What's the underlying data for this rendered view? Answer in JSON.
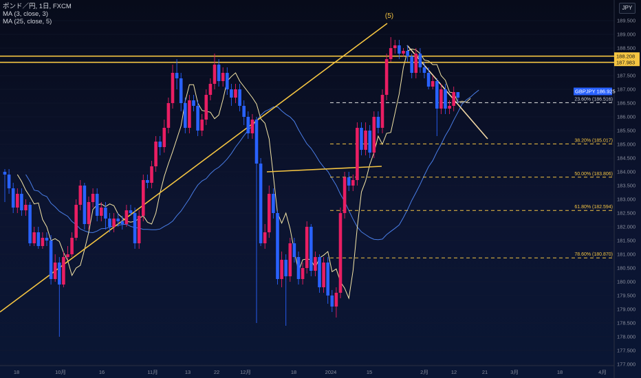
{
  "legend": {
    "symbol_line": "ポンド／円, 1日, FXCM",
    "ma_fast": "MA (3, close, 3)",
    "ma_slow": "MA (25, close, 5)"
  },
  "currency_button": "JPY",
  "colors": {
    "up": "#e91e63",
    "down": "#2962ff",
    "ma_fast": "#f6e7a8",
    "ma_slow": "#4a7ee8",
    "trendline": "#f5c542",
    "fib": "#f5c542",
    "resistance_label_bg": "#f5c542",
    "price_label_bg": "#2962ff"
  },
  "chart_data": {
    "type": "candlestick",
    "symbol": "ポンド／円",
    "timeframe": "1日",
    "y_axis": {
      "ylim": [
        177.0,
        190.0
      ],
      "ticks": [
        "177.000",
        "177.500",
        "178.000",
        "178.500",
        "179.000",
        "179.500",
        "180.000",
        "180.500",
        "181.000",
        "181.500",
        "182.000",
        "182.500",
        "183.000",
        "183.500",
        "184.000",
        "184.500",
        "185.000",
        "185.500",
        "186.000",
        "186.500",
        "187.000",
        "187.500",
        "188.000",
        "188.500",
        "189.000",
        "189.500"
      ]
    },
    "x_axis": {
      "labels": [
        "18",
        "10月",
        "16",
        "11月",
        "13",
        "22",
        "12月",
        "18",
        "2024",
        "15",
        "2月",
        "12",
        "21",
        "3月",
        "18",
        "4月"
      ]
    },
    "candles": [
      [
        184.0,
        183.9,
        184.1,
        182.9
      ],
      [
        183.9,
        183.4,
        184.1,
        183.2
      ],
      [
        183.4,
        182.7,
        183.6,
        182.5
      ],
      [
        182.7,
        183.2,
        183.4,
        182.5
      ],
      [
        183.2,
        182.6,
        183.4,
        182.4
      ],
      [
        182.6,
        182.8,
        183.0,
        182.4
      ],
      [
        182.8,
        181.4,
        182.9,
        181.3
      ],
      [
        181.4,
        181.8,
        182.0,
        181.3
      ],
      [
        181.8,
        181.3,
        182.0,
        181.2
      ],
      [
        181.3,
        181.6,
        181.8,
        181.2
      ],
      [
        181.6,
        181.5,
        181.8,
        181.3
      ],
      [
        181.5,
        180.1,
        181.7,
        179.9
      ],
      [
        180.1,
        180.7,
        181.0,
        180.0
      ],
      [
        180.7,
        179.9,
        180.9,
        178.0
      ],
      [
        179.9,
        180.9,
        181.1,
        179.8
      ],
      [
        180.9,
        181.0,
        181.3,
        180.8
      ],
      [
        181.0,
        181.6,
        181.8,
        180.9
      ],
      [
        181.6,
        182.8,
        183.0,
        181.5
      ],
      [
        182.8,
        183.5,
        183.7,
        182.6
      ],
      [
        183.5,
        182.1,
        183.6,
        181.9
      ],
      [
        182.1,
        182.9,
        183.1,
        181.9
      ],
      [
        182.9,
        183.2,
        183.4,
        182.7
      ],
      [
        183.2,
        182.4,
        183.4,
        182.2
      ],
      [
        182.4,
        182.7,
        182.9,
        182.2
      ],
      [
        182.7,
        182.3,
        182.9,
        181.9
      ],
      [
        182.3,
        182.0,
        182.5,
        181.8
      ],
      [
        182.0,
        182.3,
        182.5,
        181.8
      ],
      [
        182.3,
        182.2,
        182.5,
        182.0
      ],
      [
        182.2,
        182.1,
        182.4,
        181.9
      ],
      [
        182.1,
        182.6,
        182.8,
        182.0
      ],
      [
        182.6,
        182.5,
        182.8,
        182.4
      ],
      [
        182.5,
        181.4,
        182.7,
        181.2
      ],
      [
        181.4,
        182.4,
        182.6,
        181.2
      ],
      [
        182.4,
        183.7,
        183.9,
        182.2
      ],
      [
        183.7,
        183.6,
        183.9,
        183.4
      ],
      [
        183.6,
        184.2,
        184.4,
        183.4
      ],
      [
        184.2,
        185.1,
        185.3,
        184.0
      ],
      [
        185.1,
        184.9,
        185.3,
        184.6
      ],
      [
        184.9,
        185.6,
        185.9,
        184.7
      ],
      [
        185.6,
        186.5,
        186.7,
        185.4
      ],
      [
        186.5,
        187.6,
        187.9,
        186.3
      ],
      [
        187.6,
        187.4,
        188.1,
        187.0
      ],
      [
        187.4,
        186.5,
        187.6,
        186.2
      ],
      [
        186.5,
        185.6,
        186.7,
        185.4
      ],
      [
        185.6,
        186.6,
        186.8,
        185.4
      ],
      [
        186.6,
        186.4,
        186.8,
        186.2
      ],
      [
        186.4,
        185.5,
        186.6,
        185.3
      ],
      [
        185.5,
        185.9,
        186.1,
        185.3
      ],
      [
        185.9,
        186.8,
        187.0,
        185.7
      ],
      [
        186.8,
        187.2,
        187.4,
        186.6
      ],
      [
        187.2,
        187.9,
        188.3,
        187.0
      ],
      [
        187.9,
        187.3,
        188.1,
        187.1
      ],
      [
        187.3,
        187.6,
        187.8,
        187.1
      ],
      [
        187.6,
        187.0,
        187.8,
        186.8
      ],
      [
        187.0,
        186.7,
        187.2,
        186.4
      ],
      [
        186.7,
        187.0,
        187.2,
        186.5
      ],
      [
        187.0,
        186.4,
        187.2,
        186.2
      ],
      [
        186.4,
        186.0,
        186.6,
        185.7
      ],
      [
        186.0,
        185.4,
        186.2,
        185.2
      ],
      [
        185.4,
        185.9,
        186.1,
        185.2
      ],
      [
        185.9,
        184.3,
        186.0,
        178.5
      ],
      [
        184.3,
        181.4,
        184.5,
        181.3
      ],
      [
        181.4,
        181.8,
        182.1,
        181.2
      ],
      [
        181.8,
        183.2,
        183.5,
        181.6
      ],
      [
        183.2,
        182.5,
        183.4,
        182.3
      ],
      [
        182.5,
        180.1,
        182.6,
        179.9
      ],
      [
        180.1,
        180.8,
        181.1,
        179.8
      ],
      [
        180.8,
        180.2,
        181.0,
        178.4
      ],
      [
        180.2,
        181.4,
        181.6,
        180.0
      ],
      [
        181.4,
        180.9,
        181.6,
        180.7
      ],
      [
        180.9,
        180.1,
        181.1,
        179.9
      ],
      [
        180.1,
        180.5,
        180.7,
        179.9
      ],
      [
        180.5,
        182.0,
        182.2,
        180.3
      ],
      [
        182.0,
        180.4,
        182.1,
        180.2
      ],
      [
        180.4,
        180.9,
        181.1,
        180.2
      ],
      [
        180.9,
        179.8,
        181.0,
        179.6
      ],
      [
        179.8,
        180.7,
        180.9,
        179.6
      ],
      [
        180.7,
        179.5,
        180.9,
        179.2
      ],
      [
        179.5,
        179.1,
        179.7,
        178.9
      ],
      [
        179.1,
        179.6,
        179.8,
        178.7
      ],
      [
        179.6,
        182.5,
        182.7,
        179.4
      ],
      [
        182.5,
        183.8,
        184.0,
        182.3
      ],
      [
        183.8,
        183.5,
        184.0,
        183.3
      ],
      [
        183.5,
        183.7,
        183.9,
        183.3
      ],
      [
        183.7,
        185.6,
        185.8,
        183.5
      ],
      [
        185.6,
        184.8,
        185.8,
        184.6
      ],
      [
        184.8,
        185.5,
        185.8,
        184.6
      ],
      [
        185.5,
        184.7,
        185.7,
        184.5
      ],
      [
        184.7,
        186.0,
        186.2,
        184.5
      ],
      [
        186.0,
        185.6,
        186.2,
        185.4
      ],
      [
        185.6,
        186.8,
        187.0,
        185.4
      ],
      [
        186.8,
        188.1,
        188.3,
        186.6
      ],
      [
        188.1,
        188.5,
        188.9,
        188.0
      ],
      [
        188.5,
        188.6,
        188.8,
        188.3
      ],
      [
        188.6,
        188.3,
        188.8,
        188.1
      ],
      [
        188.3,
        188.4,
        188.5,
        188.2
      ],
      [
        188.4,
        188.2,
        188.6,
        188.0
      ],
      [
        188.2,
        187.6,
        188.3,
        187.4
      ],
      [
        187.6,
        188.3,
        188.5,
        187.4
      ],
      [
        188.3,
        187.8,
        188.5,
        187.6
      ],
      [
        187.8,
        187.6,
        188.0,
        187.4
      ],
      [
        187.6,
        187.1,
        187.8,
        187.0
      ],
      [
        187.1,
        187.3,
        187.5,
        187.0
      ],
      [
        187.3,
        186.3,
        187.4,
        185.3
      ],
      [
        186.3,
        187.0,
        187.2,
        186.1
      ],
      [
        187.0,
        186.3,
        187.2,
        186.1
      ],
      [
        186.3,
        186.4,
        186.6,
        186.1
      ],
      [
        186.4,
        186.9,
        187.1,
        186.2
      ],
      [
        186.9,
        186.7,
        186.9,
        186.5
      ]
    ],
    "price_labels": [
      {
        "value": 188.208,
        "text": "188.208"
      },
      {
        "value": 187.983,
        "text": "187.983"
      },
      {
        "value": 186.925,
        "text": "GBPJPY 186.925"
      }
    ],
    "fibonacci": [
      {
        "level": "23.60%",
        "price": 186.516,
        "label": "23.60% (186.516)"
      },
      {
        "level": "38.20%",
        "price": 185.017,
        "label": "38.20% (185.017)"
      },
      {
        "level": "50.00%",
        "price": 183.806,
        "label": "50.00% (183.806)"
      },
      {
        "level": "61.80%",
        "price": 182.594,
        "label": "61.80% (182.594)"
      },
      {
        "level": "78.60%",
        "price": 180.87,
        "label": "78.60% (180.870)"
      }
    ],
    "horizontal_lines": [
      188.208,
      187.983
    ],
    "annotations": [
      {
        "text": "(5)"
      }
    ]
  }
}
